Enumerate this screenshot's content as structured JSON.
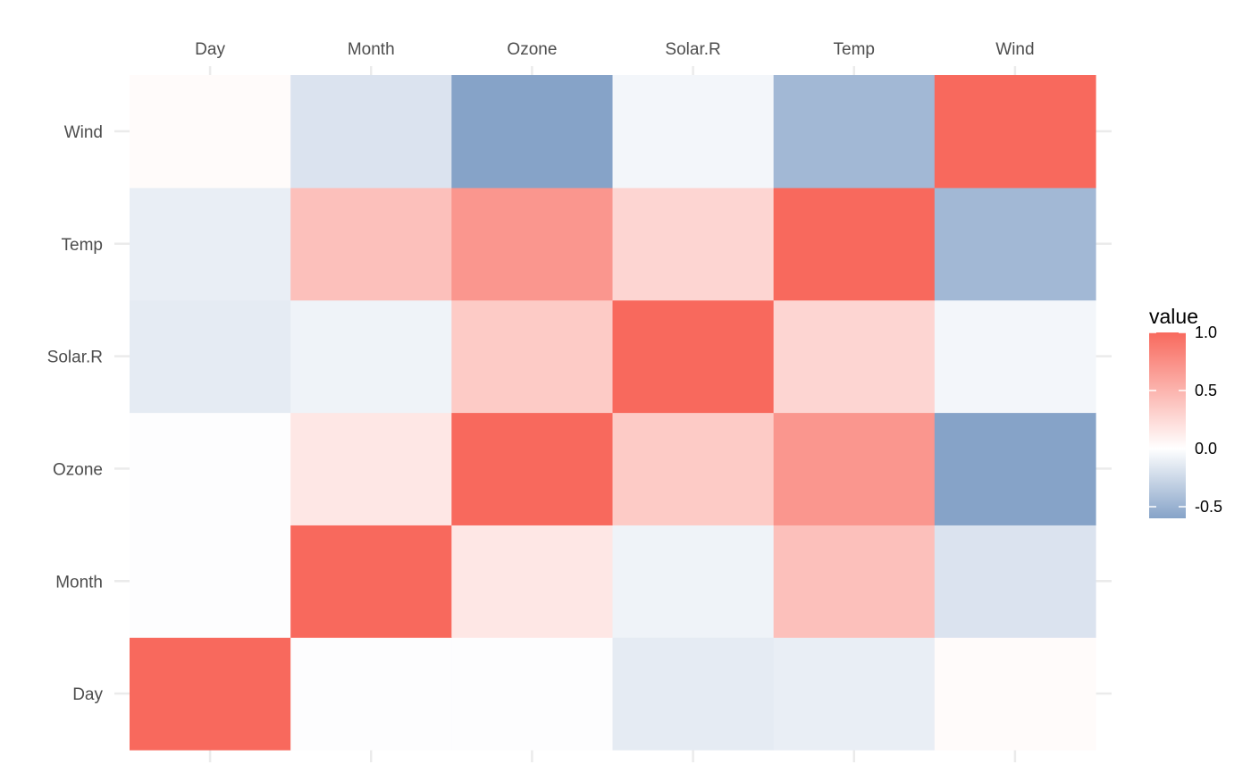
{
  "chart_data": {
    "type": "heatmap",
    "title": "",
    "xlabel": "",
    "ylabel": "",
    "x_categories": [
      "Day",
      "Month",
      "Ozone",
      "Solar.R",
      "Temp",
      "Wind"
    ],
    "y_categories": [
      "Day",
      "Month",
      "Ozone",
      "Solar.R",
      "Temp",
      "Wind"
    ],
    "x_axis_position": "top",
    "y_order": "bottom-to-top",
    "grid": true,
    "values": [
      [
        1.0,
        -0.01,
        -0.01,
        -0.13,
        -0.11,
        0.03
      ],
      [
        -0.01,
        1.0,
        0.16,
        -0.08,
        0.42,
        -0.18
      ],
      [
        -0.01,
        0.16,
        1.0,
        0.35,
        0.7,
        -0.6
      ],
      [
        -0.13,
        -0.08,
        0.35,
        1.0,
        0.28,
        -0.06
      ],
      [
        -0.11,
        0.42,
        0.7,
        0.28,
        1.0,
        -0.46
      ],
      [
        0.03,
        -0.18,
        -0.6,
        -0.06,
        -0.46,
        1.0
      ]
    ],
    "legend": {
      "title": "value",
      "position": "right",
      "range": [
        -0.6,
        1.0
      ],
      "ticks": [
        1.0,
        0.5,
        0.0,
        -0.5
      ],
      "tick_labels": [
        "1.0",
        "0.5",
        "0.0",
        "-0.5"
      ],
      "low_color": "#86a3c8",
      "mid_color": "#ffffff",
      "high_color": "#f8695d"
    }
  }
}
